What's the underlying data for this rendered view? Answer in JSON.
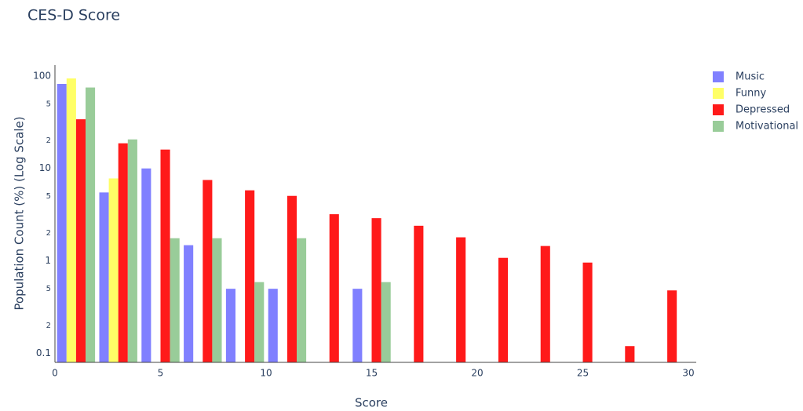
{
  "chart_data": {
    "type": "histogram",
    "title": "CES-D Score",
    "x_label": "Score",
    "y_label": "Population Count (%) (Log Scale)",
    "log_y": true,
    "legend": "top-right",
    "bins": [
      0,
      2,
      4,
      6,
      8,
      10,
      12,
      14,
      16,
      18,
      20,
      22,
      24,
      26,
      28,
      30
    ],
    "series": [
      {
        "name": "Music",
        "color": "#8080ff",
        "values": [
          82,
          5.5,
          10,
          1.48,
          0.5,
          0.5,
          null,
          0.5,
          null,
          null,
          null,
          null,
          null,
          null,
          null
        ]
      },
      {
        "name": "Funny",
        "color": "#ffff66",
        "values": [
          94,
          7.8,
          null,
          null,
          null,
          null,
          null,
          null,
          null,
          null,
          null,
          null,
          null,
          null,
          null
        ]
      },
      {
        "name": "Depressed",
        "color": "#ff1a1a",
        "values": [
          34,
          18.7,
          16,
          7.5,
          5.8,
          5.05,
          3.2,
          2.9,
          2.4,
          1.8,
          1.08,
          1.45,
          0.96,
          0.12,
          0.48
        ]
      },
      {
        "name": "Motivational",
        "color": "#99cc99",
        "values": [
          75,
          20.6,
          1.76,
          1.76,
          0.59,
          1.76,
          null,
          0.59,
          null,
          null,
          null,
          null,
          null,
          null,
          null
        ]
      }
    ],
    "xlim": [
      0,
      30
    ],
    "xticks": [
      0,
      5,
      10,
      15,
      20,
      25,
      30
    ],
    "ylim": [
      0.08,
      131
    ],
    "yticks": [
      0.1,
      {
        "value": 0.2,
        "label": "2"
      },
      {
        "value": 0.5,
        "label": "5"
      },
      1,
      {
        "value": 2,
        "label": "2"
      },
      {
        "value": 5,
        "label": "5"
      },
      10,
      {
        "value": 20,
        "label": "2"
      },
      {
        "value": 50,
        "label": "5"
      },
      100
    ]
  }
}
